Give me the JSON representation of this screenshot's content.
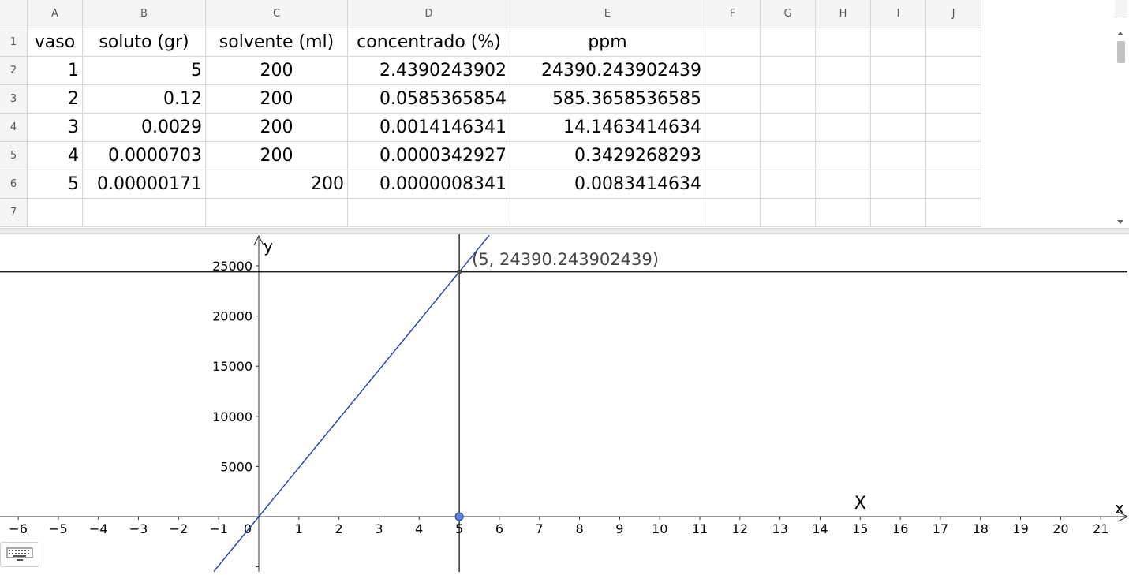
{
  "spreadsheet": {
    "columns": [
      "A",
      "B",
      "C",
      "D",
      "E",
      "F",
      "G",
      "H",
      "I",
      "J"
    ],
    "rows": [
      "1",
      "2",
      "3",
      "4",
      "5",
      "6",
      "7"
    ],
    "cells": [
      [
        "vaso",
        "soluto (gr)",
        "solvente (ml)",
        "concentrado (%)",
        "ppm",
        "",
        "",
        "",
        "",
        ""
      ],
      [
        "1",
        "5",
        "200",
        "2.4390243902",
        "24390.243902439",
        "",
        "",
        "",
        "",
        ""
      ],
      [
        "2",
        "0.12",
        "200",
        "0.0585365854",
        "585.3658536585",
        "",
        "",
        "",
        "",
        ""
      ],
      [
        "3",
        "0.0029",
        "200",
        "0.0014146341",
        "14.1463414634",
        "",
        "",
        "",
        "",
        ""
      ],
      [
        "4",
        "0.0000703",
        "200",
        "0.0000342927",
        "0.3429268293",
        "",
        "",
        "",
        "",
        ""
      ],
      [
        "5",
        "0.00000171",
        "200",
        "0.0000008341",
        "0.0083414634",
        "",
        "",
        "",
        "",
        ""
      ],
      [
        "",
        "",
        "",
        "",
        "",
        "",
        "",
        "",
        "",
        ""
      ]
    ]
  },
  "graphics": {
    "x_axis_label": "x",
    "y_axis_label": "y",
    "x_ticks": [
      "−6",
      "−5",
      "−4",
      "−3",
      "−2",
      "−1",
      "0",
      "1",
      "2",
      "3",
      "4",
      "5",
      "6",
      "7",
      "8",
      "9",
      "10",
      "11",
      "12",
      "13",
      "14",
      "15",
      "16",
      "17",
      "18",
      "19",
      "20",
      "21"
    ],
    "y_ticks": [
      "5000",
      "10000",
      "15000",
      "20000",
      "25000"
    ],
    "point_label": "(5, 24390.243902439)",
    "point_x": 5,
    "point_y": 24390.243902439,
    "slider_point_x": 5,
    "line_slope": 4878.0487804878,
    "horizontal_line_y": 24390.243902439,
    "vertical_line_x": 5,
    "text_label": "X",
    "text_label_x": 15,
    "text_label_y": 800,
    "colors": {
      "line": "#1a3fbf",
      "point": "#5b7fe0",
      "axis": "#333333",
      "label": "#444444"
    }
  },
  "keyboard": {
    "icon": "keyboard-icon"
  }
}
